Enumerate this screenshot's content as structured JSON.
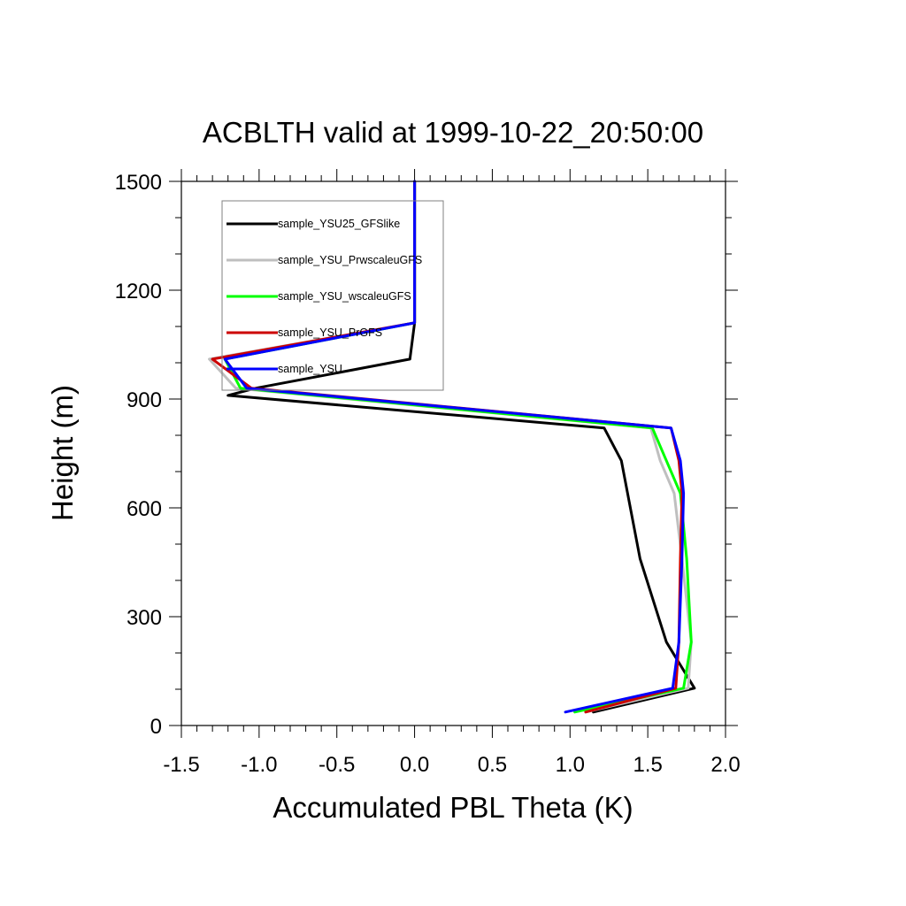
{
  "chart_data": {
    "type": "line",
    "title": "ACBLTH valid at 1999-10-22_20:50:00",
    "xlabel": "Accumulated PBL Theta (K)",
    "ylabel": "Height (m)",
    "xlim": [
      -1.5,
      2.0
    ],
    "ylim": [
      0,
      1500
    ],
    "xticks": [
      -1.5,
      -1.0,
      -0.5,
      0.0,
      0.5,
      1.0,
      1.5,
      2.0
    ],
    "xtick_labels": [
      "-1.5",
      "-1.0",
      "-0.5",
      "0.0",
      "0.5",
      "1.0",
      "1.5",
      "2.0"
    ],
    "yticks": [
      0,
      300,
      600,
      900,
      1200,
      1500
    ],
    "ytick_labels": [
      "0",
      "300",
      "600",
      "900",
      "1200",
      "1500"
    ],
    "grid": false,
    "legend_position": "top-left",
    "series": [
      {
        "name": "sample_YSU25_GFSlike",
        "color": "#000000",
        "x": [
          1.15,
          1.8,
          1.62,
          1.45,
          1.33,
          1.22,
          -1.2,
          -1.02,
          -0.03,
          0.0,
          0.0,
          0.0
        ],
        "y": [
          37,
          103,
          230,
          460,
          730,
          820,
          910,
          930,
          1010,
          1110,
          1300,
          1500
        ]
      },
      {
        "name": "sample_YSU_PrwscaleuGFS",
        "color": "#bfbfbf",
        "x": [
          1.1,
          1.76,
          1.78,
          1.72,
          1.67,
          1.58,
          1.52,
          -1.15,
          -1.32,
          0.0,
          0.0,
          0.0
        ],
        "y": [
          37,
          103,
          230,
          460,
          640,
          730,
          820,
          930,
          1010,
          1110,
          1300,
          1500
        ]
      },
      {
        "name": "sample_YSU_wscaleuGFS",
        "color": "#00ff00",
        "x": [
          1.03,
          1.73,
          1.78,
          1.75,
          1.71,
          1.62,
          1.53,
          -1.12,
          -1.22,
          0.0,
          0.0,
          0.0
        ],
        "y": [
          37,
          103,
          230,
          460,
          640,
          730,
          820,
          930,
          1010,
          1110,
          1300,
          1500
        ]
      },
      {
        "name": "sample_YSU_PrGFS",
        "color": "#cc0000",
        "x": [
          1.1,
          1.68,
          1.7,
          1.71,
          1.72,
          1.7,
          1.65,
          -1.05,
          -1.3,
          0.0,
          0.0,
          0.0
        ],
        "y": [
          37,
          103,
          230,
          460,
          640,
          730,
          820,
          930,
          1010,
          1110,
          1300,
          1500
        ]
      },
      {
        "name": "sample_YSU",
        "color": "#0000ff",
        "x": [
          0.97,
          1.66,
          1.7,
          1.72,
          1.73,
          1.71,
          1.65,
          -1.08,
          -1.22,
          0.0,
          0.0,
          0.0
        ],
        "y": [
          37,
          103,
          230,
          460,
          640,
          730,
          820,
          930,
          1010,
          1110,
          1300,
          1500
        ]
      }
    ]
  }
}
